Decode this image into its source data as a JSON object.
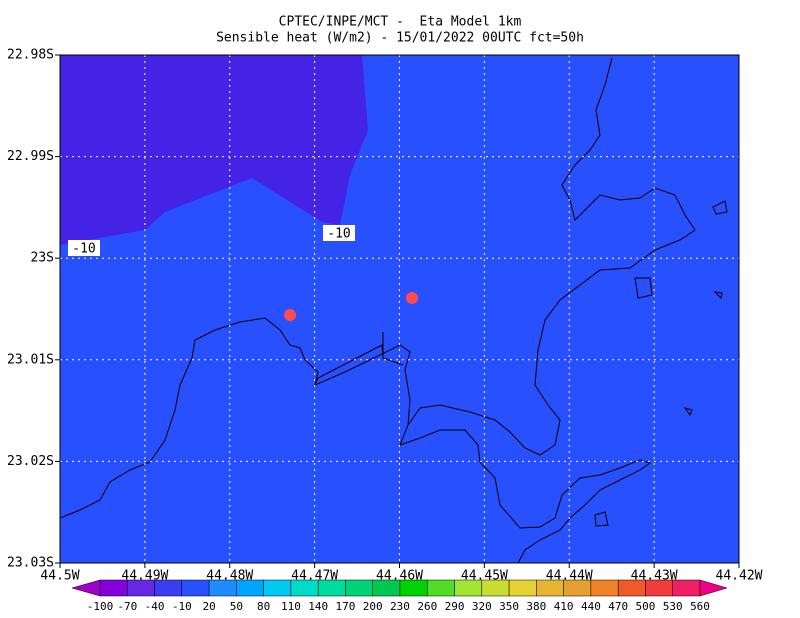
{
  "chart_data": {
    "type": "map",
    "title": "CPTEC/INPE/MCT -  Eta Model 1km",
    "subtitle": "Sensible heat (W/m2) - 15/01/2022 00UTC fct=50h",
    "xlim": [
      -44.5,
      -44.42
    ],
    "ylim": [
      -23.03,
      -22.98
    ],
    "xticks": [
      {
        "value": -44.5,
        "label": "44.5W"
      },
      {
        "value": -44.49,
        "label": "44.49W"
      },
      {
        "value": -44.48,
        "label": "44.48W"
      },
      {
        "value": -44.47,
        "label": "44.47W"
      },
      {
        "value": -44.46,
        "label": "44.46W"
      },
      {
        "value": -44.45,
        "label": "44.45W"
      },
      {
        "value": -44.44,
        "label": "44.44W"
      },
      {
        "value": -44.43,
        "label": "44.43W"
      },
      {
        "value": -44.42,
        "label": "44.42W"
      }
    ],
    "yticks": [
      {
        "value": -22.98,
        "label": "22.98S"
      },
      {
        "value": -22.99,
        "label": "22.99S"
      },
      {
        "value": -23,
        "label": "23S"
      },
      {
        "value": -23.01,
        "label": "23.01S"
      },
      {
        "value": -23.02,
        "label": "23.02S"
      },
      {
        "value": -23.03,
        "label": "23.03S"
      }
    ],
    "grid": true,
    "contour_labels": [
      "-10",
      "-10"
    ],
    "colorbar": {
      "ticks": [
        -100,
        -70,
        -40,
        -10,
        20,
        50,
        80,
        110,
        140,
        170,
        200,
        230,
        260,
        290,
        320,
        350,
        380,
        410,
        440,
        470,
        500,
        530,
        560
      ],
      "colors": [
        "#a000c8",
        "#8200dc",
        "#6428e6",
        "#3c3cf0",
        "#2850ff",
        "#1e8cff",
        "#00a5ff",
        "#00c8f0",
        "#00dcc8",
        "#00dca0",
        "#00d278",
        "#00c850",
        "#00d200",
        "#50dc28",
        "#a0e632",
        "#c8dc32",
        "#e6d232",
        "#e6b432",
        "#e6a032",
        "#f08228",
        "#f05a28",
        "#f03c3c",
        "#f01e64",
        "#f00082"
      ]
    }
  }
}
